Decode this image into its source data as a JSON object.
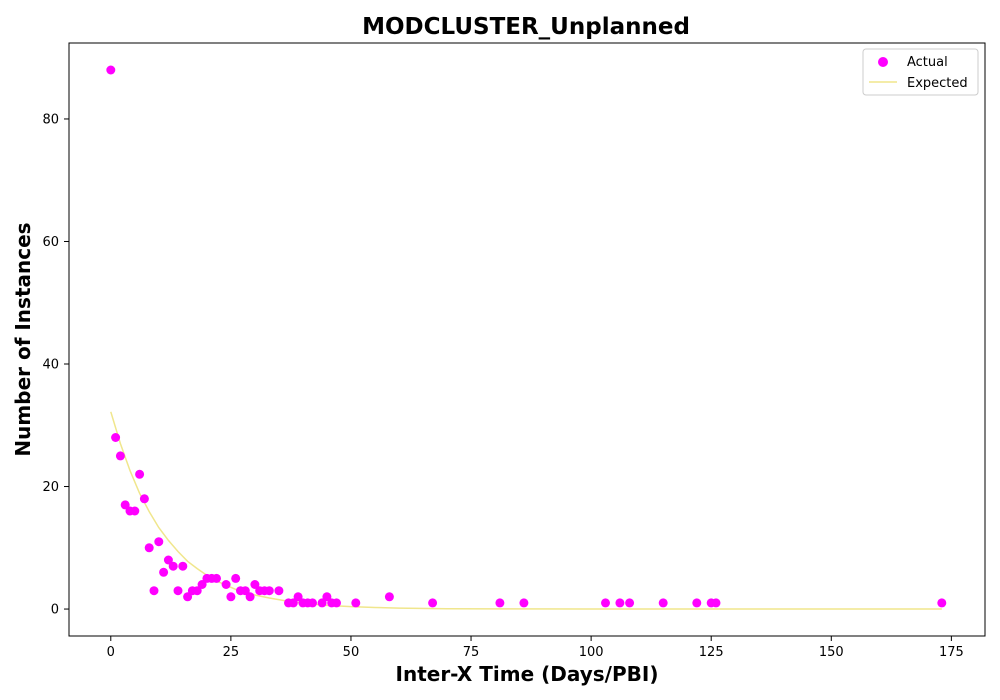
{
  "chart_data": {
    "type": "scatter",
    "title": "MODCLUSTER_Unplanned",
    "xlabel": "Inter-X Time (Days/PBI)",
    "ylabel": "Number of Instances",
    "xlim": [
      -8.7,
      182
    ],
    "ylim": [
      -4.4,
      92.4
    ],
    "xticks": [
      0,
      25,
      50,
      75,
      100,
      125,
      150,
      175
    ],
    "yticks": [
      0,
      20,
      40,
      60,
      80
    ],
    "grid": false,
    "legend": {
      "position": "top-right",
      "entries": [
        {
          "label": "Actual",
          "marker": "circle",
          "color": "#ff00ff"
        },
        {
          "label": "Expected",
          "marker": "line",
          "color": "#f0e68c"
        }
      ]
    },
    "series": [
      {
        "name": "Actual",
        "kind": "scatter",
        "color": "#ff00ff",
        "points": [
          [
            0,
            88
          ],
          [
            1,
            28
          ],
          [
            2,
            25
          ],
          [
            3,
            17
          ],
          [
            4,
            16
          ],
          [
            5,
            16
          ],
          [
            6,
            22
          ],
          [
            7,
            18
          ],
          [
            8,
            10
          ],
          [
            9,
            3
          ],
          [
            10,
            11
          ],
          [
            11,
            6
          ],
          [
            12,
            8
          ],
          [
            13,
            7
          ],
          [
            14,
            3
          ],
          [
            15,
            7
          ],
          [
            16,
            2
          ],
          [
            17,
            3
          ],
          [
            18,
            3
          ],
          [
            19,
            4
          ],
          [
            20,
            5
          ],
          [
            21,
            5
          ],
          [
            22,
            5
          ],
          [
            24,
            4
          ],
          [
            25,
            2
          ],
          [
            26,
            5
          ],
          [
            27,
            3
          ],
          [
            28,
            3
          ],
          [
            29,
            2
          ],
          [
            30,
            4
          ],
          [
            31,
            3
          ],
          [
            32,
            3
          ],
          [
            33,
            3
          ],
          [
            35,
            3
          ],
          [
            37,
            1
          ],
          [
            38,
            1
          ],
          [
            39,
            2
          ],
          [
            40,
            1
          ],
          [
            41,
            1
          ],
          [
            42,
            1
          ],
          [
            44,
            1
          ],
          [
            45,
            2
          ],
          [
            46,
            1
          ],
          [
            47,
            1
          ],
          [
            51,
            1
          ],
          [
            58,
            2
          ],
          [
            67,
            1
          ],
          [
            81,
            1
          ],
          [
            86,
            1
          ],
          [
            103,
            1
          ],
          [
            106,
            1
          ],
          [
            108,
            1
          ],
          [
            115,
            1
          ],
          [
            122,
            1
          ],
          [
            125,
            1
          ],
          [
            126,
            1
          ],
          [
            173,
            1
          ]
        ]
      },
      {
        "name": "Expected",
        "kind": "line",
        "color": "#f0e68c",
        "points": [
          [
            0,
            32.2
          ],
          [
            2,
            27.0
          ],
          [
            4,
            22.6
          ],
          [
            6,
            18.9
          ],
          [
            8,
            15.9
          ],
          [
            10,
            13.3
          ],
          [
            12,
            11.2
          ],
          [
            14,
            9.4
          ],
          [
            16,
            7.8
          ],
          [
            18,
            6.6
          ],
          [
            20,
            5.5
          ],
          [
            22,
            4.6
          ],
          [
            24,
            3.9
          ],
          [
            26,
            3.2
          ],
          [
            28,
            2.7
          ],
          [
            30,
            2.3
          ],
          [
            33,
            1.8
          ],
          [
            36,
            1.4
          ],
          [
            40,
            0.95
          ],
          [
            45,
            0.6
          ],
          [
            50,
            0.4
          ],
          [
            55,
            0.26
          ],
          [
            60,
            0.16
          ],
          [
            70,
            0.06
          ],
          [
            80,
            0.02
          ],
          [
            100,
            0.0
          ],
          [
            125,
            0.0
          ],
          [
            150,
            0.0
          ],
          [
            173,
            0.0
          ]
        ]
      }
    ]
  }
}
